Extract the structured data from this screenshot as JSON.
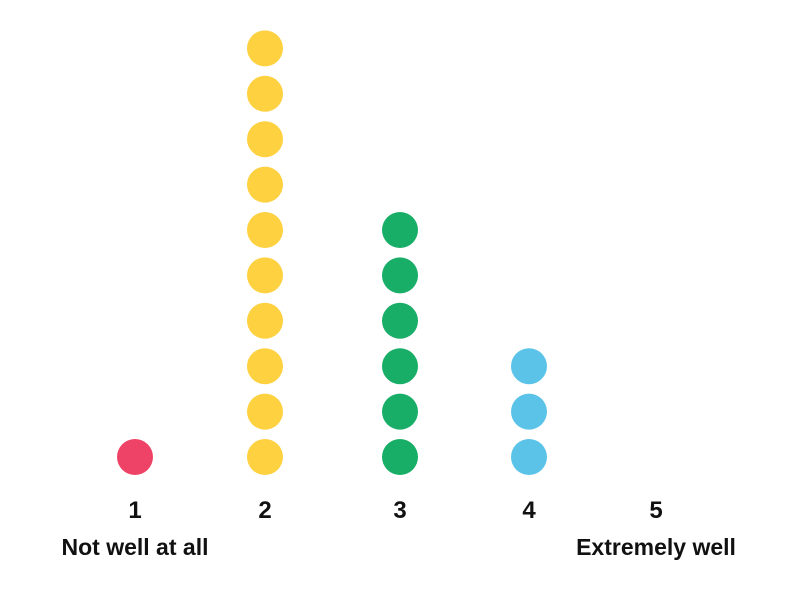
{
  "chart_data": {
    "type": "scatter",
    "subtype": "dot-plot",
    "title": "",
    "xlabel": "",
    "ylabel": "",
    "categories": [
      "1",
      "2",
      "3",
      "4",
      "5"
    ],
    "values": [
      1,
      10,
      6,
      3,
      0
    ],
    "colors": [
      "#ee4266",
      "#fdd13f",
      "#18ae68",
      "#5bc3e8",
      "#cccccc"
    ],
    "scale_anchors": {
      "low": "Not well at all",
      "high": "Extremely well"
    },
    "grid": false,
    "legend": "none"
  }
}
